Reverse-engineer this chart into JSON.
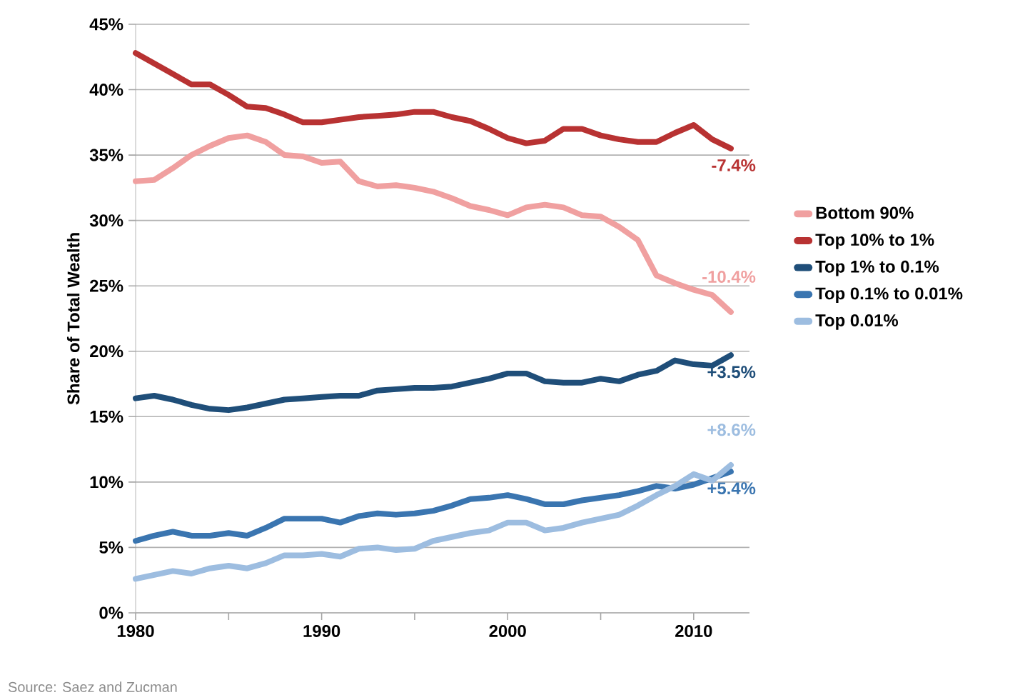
{
  "chart_data": {
    "type": "line",
    "ylabel": "Share of Total Wealth",
    "x": [
      1980,
      1981,
      1982,
      1983,
      1984,
      1985,
      1986,
      1987,
      1988,
      1989,
      1990,
      1991,
      1992,
      1993,
      1994,
      1995,
      1996,
      1997,
      1998,
      1999,
      2000,
      2001,
      2002,
      2003,
      2004,
      2005,
      2006,
      2007,
      2008,
      2009,
      2010,
      2011,
      2012
    ],
    "series": [
      {
        "name": "Bottom 90%",
        "color": "#f0a0a0",
        "values": [
          33.0,
          33.1,
          34.0,
          35.0,
          35.7,
          36.3,
          36.5,
          36.0,
          35.0,
          34.9,
          34.4,
          34.5,
          33.0,
          32.6,
          32.7,
          32.5,
          32.2,
          31.7,
          31.1,
          30.8,
          30.4,
          31.0,
          31.2,
          31.0,
          30.4,
          30.3,
          29.5,
          28.5,
          25.8,
          25.2,
          24.7,
          24.3,
          23.0
        ]
      },
      {
        "name": "Top 10% to 1%",
        "color": "#b83232",
        "values": [
          42.8,
          42.0,
          41.2,
          40.4,
          40.4,
          39.6,
          38.7,
          38.6,
          38.1,
          37.5,
          37.5,
          37.7,
          37.9,
          38.0,
          38.1,
          38.3,
          38.3,
          37.9,
          37.6,
          37.0,
          36.3,
          35.9,
          36.1,
          37.0,
          37.0,
          36.5,
          36.2,
          36.0,
          36.0,
          36.7,
          37.3,
          36.2,
          35.5
        ]
      },
      {
        "name": "Top 1% to 0.1%",
        "color": "#1f4e79",
        "values": [
          16.4,
          16.6,
          16.3,
          15.9,
          15.6,
          15.5,
          15.7,
          16.0,
          16.3,
          16.4,
          16.5,
          16.6,
          16.6,
          17.0,
          17.1,
          17.2,
          17.2,
          17.3,
          17.6,
          17.9,
          18.3,
          18.3,
          17.7,
          17.6,
          17.6,
          17.9,
          17.7,
          18.2,
          18.5,
          19.3,
          19.0,
          18.9,
          19.7
        ]
      },
      {
        "name": "Top 0.1% to 0.01%",
        "color": "#3a75b0",
        "values": [
          5.5,
          5.9,
          6.2,
          5.9,
          5.9,
          6.1,
          5.9,
          6.5,
          7.2,
          7.2,
          7.2,
          6.9,
          7.4,
          7.6,
          7.5,
          7.6,
          7.8,
          8.2,
          8.7,
          8.8,
          9.0,
          8.7,
          8.3,
          8.3,
          8.6,
          8.8,
          9.0,
          9.3,
          9.7,
          9.5,
          9.8,
          10.3,
          10.8
        ]
      },
      {
        "name": "Top 0.01%",
        "color": "#9dbde0",
        "values": [
          2.6,
          2.9,
          3.2,
          3.0,
          3.4,
          3.6,
          3.4,
          3.8,
          4.4,
          4.4,
          4.5,
          4.3,
          4.9,
          5.0,
          4.8,
          4.9,
          5.5,
          5.8,
          6.1,
          6.3,
          6.9,
          6.9,
          6.3,
          6.5,
          6.9,
          7.2,
          7.5,
          8.2,
          9.0,
          9.7,
          10.6,
          10.1,
          11.3
        ]
      }
    ],
    "xlim": [
      1980,
      2013
    ],
    "xticks": [
      1980,
      {
        "value": 1985,
        "label": null
      },
      1990,
      {
        "value": 1995,
        "label": null
      },
      2000,
      {
        "value": 2005,
        "label": null
      },
      2010
    ],
    "ylim": [
      0,
      45
    ],
    "yticks": [
      {
        "value": 0,
        "label": "0%"
      },
      {
        "value": 5,
        "label": "5%"
      },
      {
        "value": 10,
        "label": "10%"
      },
      {
        "value": 15,
        "label": "15%"
      },
      {
        "value": 20,
        "label": "20%"
      },
      {
        "value": 25,
        "label": "25%"
      },
      {
        "value": 30,
        "label": "30%"
      },
      {
        "value": 35,
        "label": "35%"
      },
      {
        "value": 40,
        "label": "40%"
      },
      {
        "value": 45,
        "label": "45%"
      }
    ],
    "grid": "y",
    "legend": "right",
    "marker": "none",
    "line_style": "solid",
    "annotations": [
      {
        "text": "-7.4%",
        "y": 35.5
      },
      {
        "text": "-10.4%",
        "y": 23.0
      },
      {
        "text": "+3.5%",
        "y": 19.7
      },
      {
        "text": "+8.6%",
        "y": 11.3
      },
      {
        "text": "+5.4%",
        "y": 10.8
      },
      "Source: Saez and Zucman"
    ]
  }
}
